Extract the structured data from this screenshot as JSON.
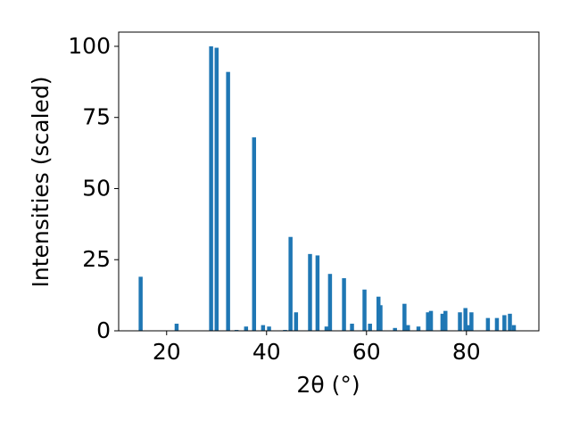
{
  "chart_data": {
    "type": "bar",
    "xlabel": "2θ (°)",
    "ylabel": "Intensities (scaled)",
    "x": [
      14.8,
      22.0,
      28.9,
      30.0,
      32.3,
      34.0,
      35.9,
      37.5,
      39.3,
      40.5,
      43.7,
      44.8,
      45.9,
      48.7,
      50.2,
      52.0,
      52.7,
      55.5,
      57.1,
      59.6,
      60.7,
      62.4,
      62.8,
      65.7,
      67.6,
      68.3,
      70.4,
      72.3,
      72.9,
      75.2,
      75.8,
      78.7,
      79.8,
      80.5,
      81.0,
      84.3,
      86.1,
      87.6,
      88.7,
      89.5
    ],
    "values": [
      19,
      2.5,
      100,
      99.5,
      91,
      0.3,
      1.5,
      68,
      2,
      1.5,
      0.3,
      33,
      6.5,
      27,
      26.5,
      1.5,
      20,
      18.5,
      2.5,
      14.5,
      2.5,
      12,
      9,
      1,
      9.5,
      2,
      1.5,
      6.5,
      7,
      6,
      7,
      6.5,
      8,
      2,
      6.5,
      4.5,
      4.5,
      5.5,
      6,
      2
    ],
    "color": "#1f77b4",
    "xlim": [
      10.4,
      94.5
    ],
    "xticks": [
      20,
      40,
      60,
      80
    ],
    "ylim": [
      0,
      105
    ],
    "yticks": [
      0,
      25,
      50,
      75,
      100
    ],
    "grid": false
  }
}
